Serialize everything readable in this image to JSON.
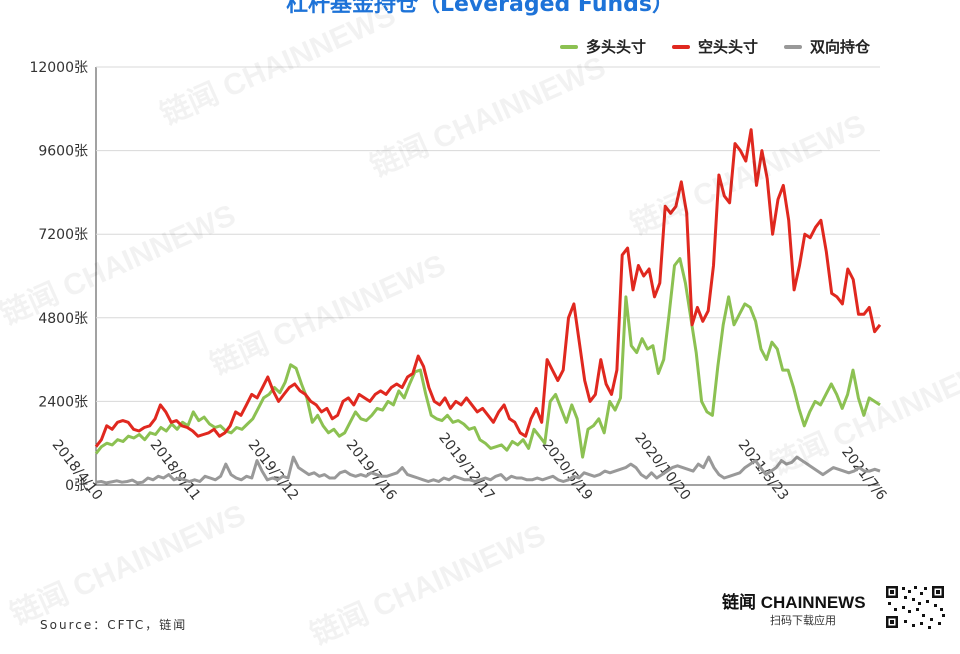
{
  "chart_data": {
    "type": "line",
    "title": "杠杆基金持仓（Leveraged Funds）",
    "ylim": [
      0,
      12000
    ],
    "y_ticks": [
      0,
      2400,
      4800,
      7200,
      9600,
      12000
    ],
    "y_tick_labels": [
      "0张",
      "2400张",
      "4800张",
      "7200张",
      "9600张",
      "12000张"
    ],
    "x_ticks": [
      "2018/4/10",
      "2018/9/11",
      "2019/2/12",
      "2019/7/16",
      "2019/12/17",
      "2020/5/19",
      "2020/10/20",
      "2021/3/23",
      "2021/7/6"
    ],
    "legend_position": "top-right",
    "grid": true,
    "series": [
      {
        "name": "多头头寸",
        "color": "#8cc152",
        "values": [
          900,
          1100,
          1200,
          1150,
          1300,
          1250,
          1400,
          1350,
          1450,
          1300,
          1500,
          1450,
          1650,
          1550,
          1750,
          1600,
          1800,
          1700,
          2100,
          1850,
          1950,
          1750,
          1650,
          1700,
          1550,
          1500,
          1650,
          1600,
          1750,
          1900,
          2200,
          2500,
          2600,
          2800,
          2650,
          2950,
          3450,
          3350,
          2900,
          2500,
          1800,
          2000,
          1700,
          1500,
          1600,
          1400,
          1500,
          1800,
          2100,
          1900,
          1850,
          2000,
          2200,
          2150,
          2400,
          2300,
          2700,
          2500,
          2900,
          3250,
          3300,
          2600,
          2000,
          1900,
          1850,
          2000,
          1800,
          1850,
          1750,
          1600,
          1650,
          1300,
          1200,
          1050,
          1100,
          1150,
          1000,
          1250,
          1150,
          1300,
          1050,
          1600,
          1400,
          1200,
          2400,
          2600,
          2200,
          1800,
          2300,
          1900,
          800,
          1600,
          1700,
          1900,
          1500,
          2400,
          2150,
          2500,
          5400,
          4000,
          3800,
          4200,
          3900,
          4000,
          3200,
          3600,
          4900,
          6300,
          6500,
          5800,
          4800,
          3800,
          2400,
          2100,
          2000,
          3400,
          4600,
          5400,
          4600,
          4900,
          5200,
          5100,
          4700,
          3900,
          3600,
          4100,
          3900,
          3300,
          3300,
          2800,
          2200,
          1700,
          2100,
          2400,
          2300,
          2600,
          2900,
          2600,
          2200,
          2600,
          3300,
          2500,
          2000,
          2500,
          2400,
          2300
        ]
      },
      {
        "name": "空头头寸",
        "color": "#e0281f",
        "values": [
          1100,
          1300,
          1700,
          1600,
          1800,
          1850,
          1800,
          1600,
          1550,
          1650,
          1700,
          1900,
          2300,
          2100,
          1800,
          1850,
          1700,
          1650,
          1550,
          1400,
          1450,
          1500,
          1600,
          1400,
          1500,
          1700,
          2100,
          2000,
          2300,
          2600,
          2500,
          2800,
          3100,
          2700,
          2400,
          2600,
          2800,
          2900,
          2700,
          2600,
          2400,
          2300,
          2100,
          2200,
          1900,
          2000,
          2400,
          2500,
          2300,
          2600,
          2500,
          2400,
          2600,
          2700,
          2600,
          2800,
          2900,
          2800,
          3100,
          3200,
          3700,
          3400,
          2800,
          2400,
          2300,
          2500,
          2200,
          2400,
          2300,
          2500,
          2300,
          2100,
          2200,
          2000,
          1800,
          2100,
          2300,
          1900,
          1800,
          1500,
          1400,
          1900,
          2200,
          1800,
          3600,
          3300,
          3000,
          3300,
          4800,
          5200,
          4100,
          3000,
          2400,
          2600,
          3600,
          2900,
          2600,
          3300,
          6600,
          6800,
          5600,
          6300,
          6000,
          6200,
          5400,
          5800,
          8000,
          7800,
          8000,
          8700,
          7800,
          4600,
          5100,
          4700,
          5000,
          6300,
          8900,
          8300,
          8100,
          9800,
          9600,
          9300,
          10200,
          8600,
          9600,
          8800,
          7200,
          8200,
          8600,
          7600,
          5600,
          6300,
          7200,
          7100,
          7400,
          7600,
          6700,
          5500,
          5400,
          5200,
          6200,
          5900,
          4900,
          4900,
          5100,
          4400,
          4600
        ]
      },
      {
        "name": "双向持仓",
        "color": "#999999",
        "values": [
          80,
          100,
          60,
          90,
          120,
          80,
          100,
          140,
          60,
          80,
          200,
          150,
          250,
          200,
          300,
          150,
          200,
          150,
          100,
          150,
          100,
          250,
          200,
          150,
          250,
          600,
          300,
          200,
          150,
          250,
          200,
          700,
          400,
          150,
          200,
          150,
          250,
          200,
          800,
          500,
          400,
          300,
          350,
          250,
          300,
          200,
          200,
          350,
          400,
          300,
          250,
          300,
          250,
          350,
          300,
          250,
          250,
          300,
          350,
          500,
          300,
          250,
          200,
          150,
          100,
          150,
          100,
          200,
          150,
          250,
          200,
          150,
          150,
          100,
          150,
          200,
          150,
          250,
          300,
          150,
          250,
          200,
          200,
          150,
          150,
          200,
          150,
          200,
          250,
          150,
          100,
          150,
          250,
          200,
          350,
          300,
          250,
          300,
          400,
          350,
          400,
          450,
          500,
          600,
          500,
          300,
          200,
          350,
          200,
          300,
          400,
          500,
          550,
          500,
          450,
          400,
          600,
          500,
          800,
          500,
          300,
          200,
          250,
          300,
          350,
          500,
          600,
          700,
          500,
          300,
          400,
          500,
          700,
          600,
          650,
          800,
          700,
          600,
          500,
          400,
          300,
          400,
          500,
          450,
          400,
          350,
          400,
          500,
          400,
          400,
          450,
          400
        ]
      }
    ]
  },
  "footer": {
    "source": "Source：CFTC，链闻",
    "brand_cn": "链闻",
    "brand_en": "CHAINNEWS",
    "brand_sub": "扫码下载应用"
  },
  "watermark_text": "链闻 CHAINNEWS",
  "icons": {
    "qr": "qr-code-icon"
  }
}
